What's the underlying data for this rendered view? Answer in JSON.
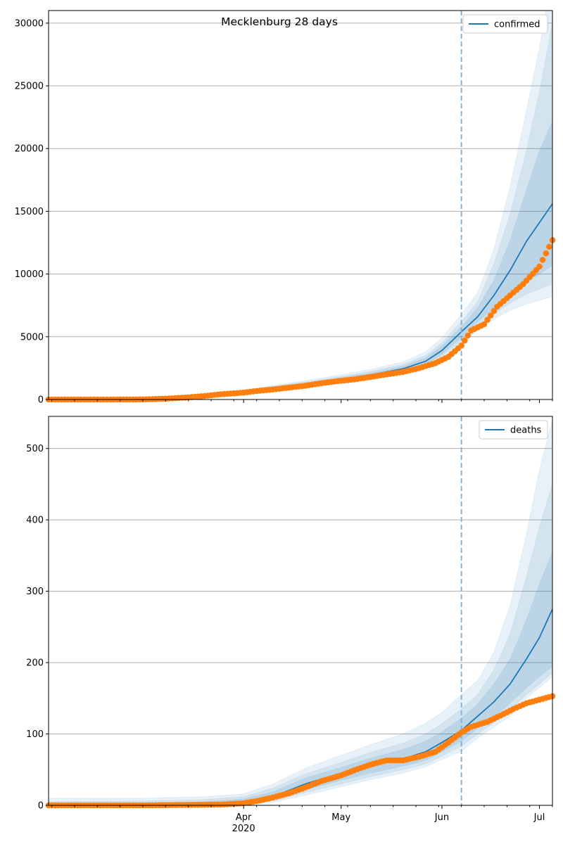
{
  "chart_data": [
    {
      "type": "line",
      "title": "Mecklenburg 28 days",
      "legend": "confirmed",
      "legend_position": "top-right",
      "grid": "horizontal",
      "forecast_start": "2020-06-07",
      "xlim": [
        "2020-02-01",
        "2020-07-05"
      ],
      "ylim": [
        0,
        31000
      ],
      "yticks": [
        0,
        5000,
        10000,
        15000,
        20000,
        25000,
        30000
      ],
      "ytick_labels": [
        "0",
        "5000",
        "10000",
        "15000",
        "20000",
        "25000",
        "30000"
      ],
      "model": {
        "x": [
          "2020-02-01",
          "2020-03-01",
          "2020-03-10",
          "2020-03-20",
          "2020-04-01",
          "2020-04-10",
          "2020-04-20",
          "2020-05-01",
          "2020-05-10",
          "2020-05-20",
          "2020-05-27",
          "2020-06-01",
          "2020-06-07",
          "2020-06-12",
          "2020-06-17",
          "2020-06-22",
          "2020-06-27",
          "2020-07-01",
          "2020-07-05"
        ],
        "median": [
          0,
          20,
          80,
          250,
          550,
          900,
          1200,
          1600,
          1950,
          2450,
          3050,
          3900,
          5400,
          6600,
          8300,
          10300,
          12600,
          14100,
          15600
        ],
        "bands": [
          {
            "lower": [
              0,
              5,
              50,
              180,
              450,
              760,
              1000,
              1350,
              1640,
              2050,
              2550,
              3300,
              4300,
              5600,
              6400,
              7100,
              7600,
              7900,
              8200
            ],
            "upper": [
              50,
              60,
              140,
              360,
              720,
              1120,
              1500,
              1980,
              2400,
              3000,
              3800,
              4900,
              6800,
              8500,
              12000,
              17000,
              23000,
              28000,
              34000
            ]
          },
          {
            "lower": [
              0,
              10,
              60,
              200,
              480,
              800,
              1060,
              1410,
              1710,
              2140,
              2660,
              3440,
              4650,
              5900,
              6800,
              7700,
              8400,
              8800,
              9200
            ],
            "upper": [
              30,
              45,
              120,
              320,
              660,
              1040,
              1400,
              1830,
              2230,
              2800,
              3500,
              4500,
              6200,
              7800,
              10800,
              14800,
              19800,
              24500,
              30000
            ]
          },
          {
            "lower": [
              0,
              14,
              68,
              220,
              510,
              840,
              1120,
              1480,
              1790,
              2240,
              2790,
              3600,
              4950,
              6200,
              7300,
              8500,
              9400,
              10000,
              10700
            ],
            "upper": [
              20,
              35,
              100,
              290,
              610,
              970,
              1310,
              1720,
              2110,
              2650,
              3300,
              4250,
              5800,
              7300,
              9500,
              12700,
              16700,
              19800,
              22200
            ]
          }
        ]
      },
      "observed": {
        "x": [
          "2020-02-01",
          "2020-02-20",
          "2020-03-01",
          "2020-03-05",
          "2020-03-10",
          "2020-03-15",
          "2020-03-20",
          "2020-03-25",
          "2020-04-01",
          "2020-04-05",
          "2020-04-10",
          "2020-04-15",
          "2020-04-20",
          "2020-04-25",
          "2020-05-01",
          "2020-05-05",
          "2020-05-10",
          "2020-05-15",
          "2020-05-20",
          "2020-05-25",
          "2020-05-30",
          "2020-06-03",
          "2020-06-07",
          "2020-06-10",
          "2020-06-14",
          "2020-06-18",
          "2020-06-22",
          "2020-06-26",
          "2020-07-01",
          "2020-07-05"
        ],
        "y": [
          0,
          0,
          10,
          40,
          90,
          170,
          280,
          420,
          550,
          680,
          800,
          950,
          1100,
          1300,
          1500,
          1600,
          1800,
          2000,
          2200,
          2500,
          2900,
          3400,
          4300,
          5500,
          6000,
          7400,
          8300,
          9200,
          10600,
          12700
        ]
      }
    },
    {
      "type": "line",
      "title": "",
      "legend": "deaths",
      "legend_position": "top-right",
      "grid": "horizontal",
      "forecast_start": "2020-06-07",
      "xlim": [
        "2020-02-01",
        "2020-07-05"
      ],
      "ylim": [
        0,
        545
      ],
      "yticks": [
        0,
        100,
        200,
        300,
        400,
        500
      ],
      "ytick_labels": [
        "0",
        "100",
        "200",
        "300",
        "400",
        "500"
      ],
      "xtick_labels": [
        {
          "date": "2020-04-01",
          "label": "Apr",
          "sublabel": "2020"
        },
        {
          "date": "2020-05-01",
          "label": "May",
          "sublabel": ""
        },
        {
          "date": "2020-06-01",
          "label": "Jun",
          "sublabel": ""
        },
        {
          "date": "2020-07-01",
          "label": "Jul",
          "sublabel": ""
        }
      ],
      "model": {
        "x": [
          "2020-02-01",
          "2020-03-01",
          "2020-03-20",
          "2020-04-01",
          "2020-04-10",
          "2020-04-20",
          "2020-05-01",
          "2020-05-10",
          "2020-05-20",
          "2020-05-27",
          "2020-06-01",
          "2020-06-07",
          "2020-06-12",
          "2020-06-17",
          "2020-06-22",
          "2020-06-27",
          "2020-07-01",
          "2020-07-05"
        ],
        "median": [
          0,
          0,
          1,
          4,
          12,
          30,
          45,
          55,
          65,
          75,
          88,
          105,
          125,
          145,
          170,
          205,
          235,
          275
        ],
        "bands": [
          {
            "lower": [
              0,
              0,
              0,
              1,
              4,
              14,
              26,
              36,
              45,
              54,
              64,
              76,
              94,
              110,
              125,
              150,
              165,
              180
            ],
            "upper": [
              10,
              10,
              12,
              16,
              30,
              52,
              70,
              85,
              100,
              115,
              130,
              155,
              175,
              215,
              280,
              380,
              470,
              540
            ]
          },
          {
            "lower": [
              0,
              0,
              0,
              2,
              6,
              18,
              30,
              40,
              50,
              58,
              69,
              83,
              100,
              116,
              134,
              155,
              170,
              186
            ],
            "upper": [
              5,
              6,
              8,
              12,
              24,
              44,
              60,
              74,
              87,
              100,
              114,
              135,
              155,
              190,
              240,
              320,
              390,
              450
            ]
          },
          {
            "lower": [
              0,
              0,
              0,
              3,
              8,
              22,
              35,
              45,
              55,
              63,
              75,
              90,
              108,
              124,
              143,
              165,
              180,
              195
            ],
            "upper": [
              2,
              3,
              5,
              9,
              19,
              38,
              53,
              66,
              78,
              90,
              103,
              122,
              142,
              170,
              205,
              260,
              310,
              355
            ]
          }
        ]
      },
      "observed": {
        "x": [
          "2020-02-01",
          "2020-03-01",
          "2020-03-25",
          "2020-04-01",
          "2020-04-05",
          "2020-04-10",
          "2020-04-15",
          "2020-04-20",
          "2020-04-25",
          "2020-05-01",
          "2020-05-05",
          "2020-05-10",
          "2020-05-15",
          "2020-05-20",
          "2020-05-25",
          "2020-05-30",
          "2020-06-03",
          "2020-06-07",
          "2020-06-10",
          "2020-06-15",
          "2020-06-20",
          "2020-06-23",
          "2020-06-27",
          "2020-07-01",
          "2020-07-05"
        ],
        "y": [
          0,
          0,
          1,
          3,
          6,
          11,
          17,
          25,
          34,
          42,
          49,
          57,
          63,
          63,
          68,
          75,
          88,
          102,
          110,
          117,
          128,
          135,
          143,
          148,
          153
        ]
      }
    }
  ],
  "colors": {
    "model_line": "#1f77b4",
    "band_fill": "#1f77b4",
    "observed": "#ff7f0e",
    "grid": "#b0b0b0",
    "forecast_marker": "#7aaed6"
  }
}
